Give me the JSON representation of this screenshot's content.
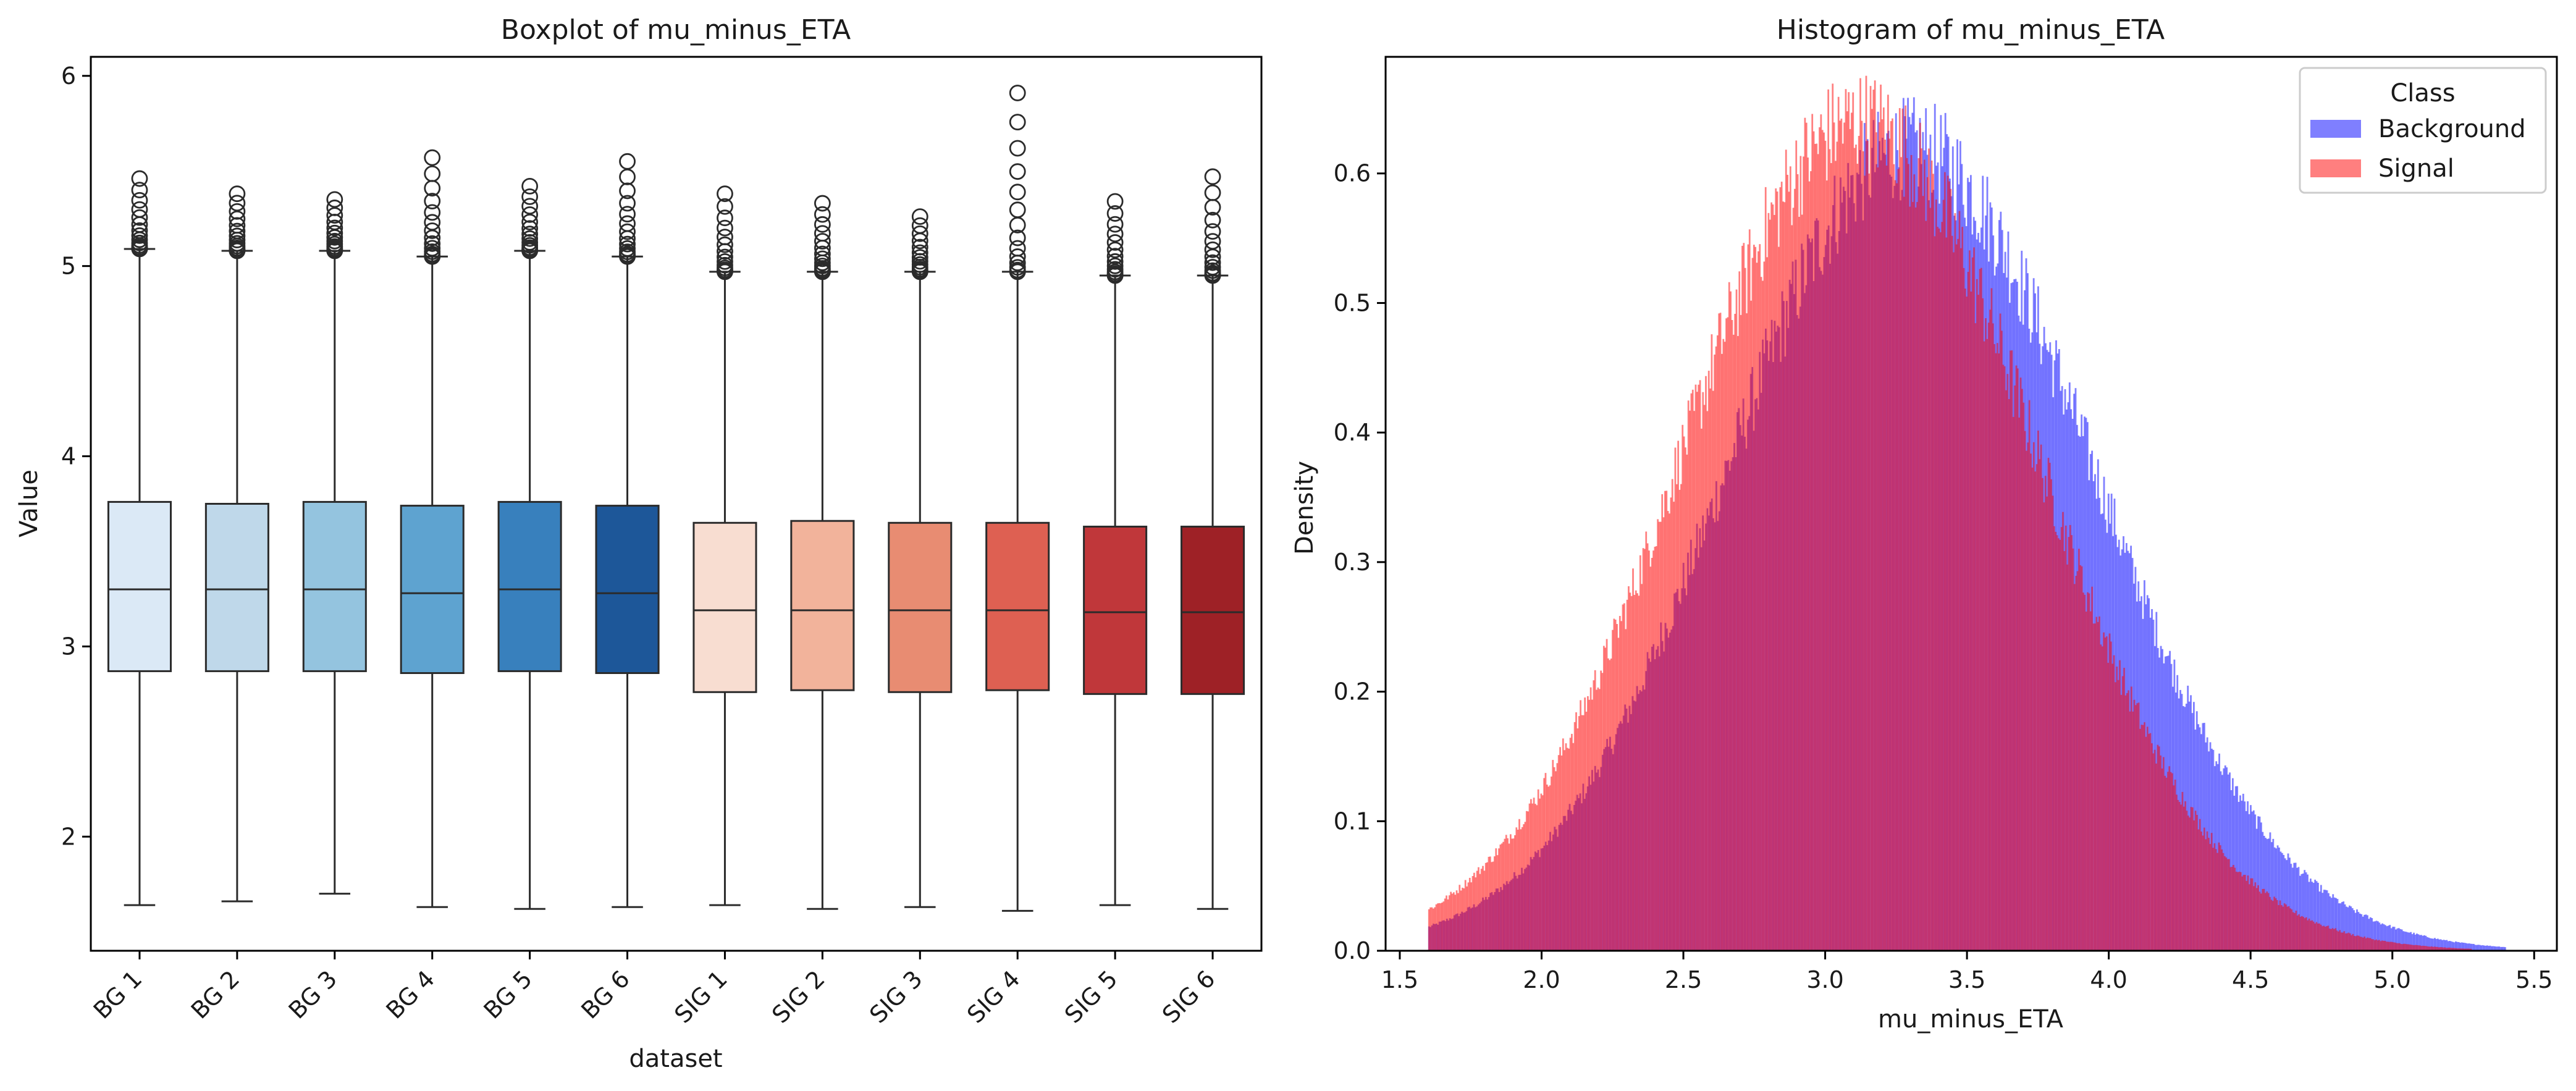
{
  "chart_data": [
    {
      "type": "box",
      "title": "Boxplot of mu_minus_ETA",
      "xlabel": "dataset",
      "ylabel": "Value",
      "ylim": [
        1.4,
        6.1
      ],
      "yticks": [
        "2",
        "3",
        "4",
        "5",
        "6"
      ],
      "categories": [
        "BG 1",
        "BG 2",
        "BG 3",
        "BG 4",
        "BG 5",
        "BG 6",
        "SIG 1",
        "SIG 2",
        "SIG 3",
        "SIG 4",
        "SIG 5",
        "SIG 6"
      ],
      "boxes": [
        {
          "name": "BG 1",
          "whisker_low": 1.64,
          "q1": 2.87,
          "median": 3.3,
          "q3": 3.76,
          "whisker_high": 5.09,
          "outlier_max": 5.46,
          "color": "#dbe9f6"
        },
        {
          "name": "BG 2",
          "whisker_low": 1.66,
          "q1": 2.87,
          "median": 3.3,
          "q3": 3.75,
          "whisker_high": 5.08,
          "outlier_max": 5.38,
          "color": "#bfd8ea"
        },
        {
          "name": "BG 3",
          "whisker_low": 1.7,
          "q1": 2.87,
          "median": 3.3,
          "q3": 3.76,
          "whisker_high": 5.08,
          "outlier_max": 5.35,
          "color": "#94c4df"
        },
        {
          "name": "BG 4",
          "whisker_low": 1.63,
          "q1": 2.86,
          "median": 3.28,
          "q3": 3.74,
          "whisker_high": 5.05,
          "outlier_max": 5.57,
          "color": "#5ea3d0"
        },
        {
          "name": "BG 5",
          "whisker_low": 1.62,
          "q1": 2.87,
          "median": 3.3,
          "q3": 3.76,
          "whisker_high": 5.08,
          "outlier_max": 5.42,
          "color": "#3880bd"
        },
        {
          "name": "BG 6",
          "whisker_low": 1.63,
          "q1": 2.86,
          "median": 3.28,
          "q3": 3.74,
          "whisker_high": 5.05,
          "outlier_max": 5.55,
          "color": "#1d5799"
        },
        {
          "name": "SIG 1",
          "whisker_low": 1.64,
          "q1": 2.76,
          "median": 3.19,
          "q3": 3.65,
          "whisker_high": 4.97,
          "outlier_max": 5.38,
          "color": "#f8ddd1"
        },
        {
          "name": "SIG 2",
          "whisker_low": 1.62,
          "q1": 2.77,
          "median": 3.19,
          "q3": 3.66,
          "whisker_high": 4.97,
          "outlier_max": 5.33,
          "color": "#f2b39b"
        },
        {
          "name": "SIG 3",
          "whisker_low": 1.63,
          "q1": 2.76,
          "median": 3.19,
          "q3": 3.65,
          "whisker_high": 4.97,
          "outlier_max": 5.26,
          "color": "#e88c72"
        },
        {
          "name": "SIG 4",
          "whisker_low": 1.61,
          "q1": 2.77,
          "median": 3.19,
          "q3": 3.65,
          "whisker_high": 4.97,
          "outlier_max": 5.91,
          "color": "#de6052"
        },
        {
          "name": "SIG 5",
          "whisker_low": 1.64,
          "q1": 2.75,
          "median": 3.18,
          "q3": 3.63,
          "whisker_high": 4.95,
          "outlier_max": 5.34,
          "color": "#c0373a"
        },
        {
          "name": "SIG 6",
          "whisker_low": 1.62,
          "q1": 2.75,
          "median": 3.18,
          "q3": 3.63,
          "whisker_high": 4.95,
          "outlier_max": 5.47,
          "color": "#9e2126"
        }
      ]
    },
    {
      "type": "histogram",
      "title": "Histogram of mu_minus_ETA",
      "xlabel": "mu_minus_ETA",
      "ylabel": "Density",
      "xlim": [
        1.45,
        5.58
      ],
      "ylim": [
        0.0,
        0.69
      ],
      "xticks": [
        "1.5",
        "2.0",
        "2.5",
        "3.0",
        "3.5",
        "4.0",
        "4.5",
        "5.0",
        "5.5"
      ],
      "yticks": [
        "0.0",
        "0.1",
        "0.2",
        "0.3",
        "0.4",
        "0.5",
        "0.6"
      ],
      "legend": {
        "title": "Class",
        "position": "upper right"
      },
      "series": [
        {
          "name": "Background",
          "color": "#0000ff",
          "alpha": 0.5,
          "mean": 3.3,
          "sigma": 0.64,
          "peak_density": 0.62,
          "support": [
            1.6,
            5.4
          ]
        },
        {
          "name": "Signal",
          "color": "#ff0000",
          "alpha": 0.5,
          "mean": 3.12,
          "sigma": 0.62,
          "peak_density": 0.64,
          "support": [
            1.6,
            5.3
          ]
        }
      ]
    }
  ]
}
